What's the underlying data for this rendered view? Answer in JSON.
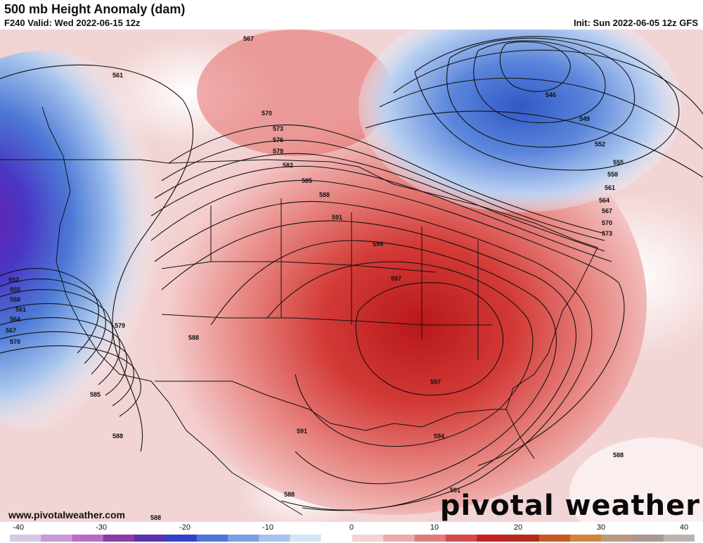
{
  "header": {
    "title": "500 mb Height Anomaly (dam)",
    "valid": "F240 Valid: Wed 2022-06-15 12z",
    "init": "Init: Sun 2022-06-05 12z GFS"
  },
  "footer": {
    "url": "www.pivotalweather.com",
    "logo": "pivotal weather"
  },
  "colorbar": {
    "ticks": [
      "-40",
      "-30",
      "-20",
      "-10",
      "0",
      "10",
      "20",
      "30",
      "40"
    ],
    "colors": [
      "#d8c8e6",
      "#c99ad6",
      "#b96cc4",
      "#8b3aa6",
      "#5a2fb0",
      "#3340c8",
      "#4f74d6",
      "#7aa0e0",
      "#a9c4ec",
      "#d6e4f5",
      "#ffffff",
      "#f6d2d2",
      "#eeaaaa",
      "#e07b7b",
      "#d24a4a",
      "#c42222",
      "#b52a1a",
      "#c65a22",
      "#d2843a",
      "#b99a80",
      "#a89890",
      "#bdb4b0"
    ]
  },
  "contour_labels": [
    "567",
    "561",
    "570",
    "573",
    "576",
    "579",
    "582",
    "585",
    "588",
    "591",
    "594",
    "597",
    "546",
    "549",
    "552",
    "555",
    "558",
    "561",
    "564",
    "567",
    "570",
    "573",
    "552",
    "555",
    "558",
    "561",
    "564",
    "567",
    "570",
    "579",
    "588",
    "585",
    "588",
    "591",
    "594",
    "597",
    "588",
    "591",
    "588",
    "588"
  ]
}
